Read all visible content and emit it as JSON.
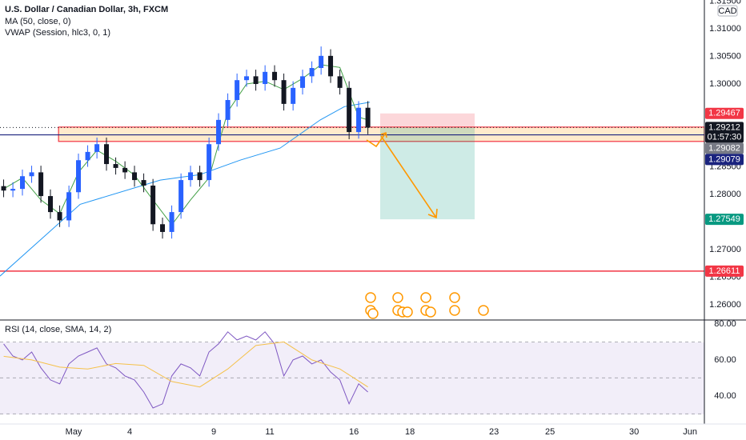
{
  "chart_data": [
    {
      "type": "candlestick",
      "title": "U.S. Dollar / Canadian Dollar, 3h, FXCM",
      "currency": "CAD",
      "xlim": [
        -2.63,
        22.51
      ],
      "xticks": [
        {
          "value": 0,
          "label": "May"
        },
        {
          "value": 2,
          "label": "4"
        },
        {
          "value": 5,
          "label": "9"
        },
        {
          "value": 7,
          "label": "11"
        },
        {
          "value": 10,
          "label": "16"
        },
        {
          "value": 12,
          "label": "18"
        },
        {
          "value": 15,
          "label": "23"
        },
        {
          "value": 17,
          "label": "25"
        },
        {
          "value": 20,
          "label": "30"
        },
        {
          "value": 22,
          "label": "Jun"
        }
      ],
      "ylim": [
        1.25725,
        1.31522
      ],
      "yticks": [
        {
          "value": 1.315,
          "label": "1.31500"
        },
        {
          "value": 1.31,
          "label": "1.31000"
        },
        {
          "value": 1.305,
          "label": "1.30500"
        },
        {
          "value": 1.3,
          "label": "1.30000"
        },
        {
          "value": 1.285,
          "label": "1.28500"
        },
        {
          "value": 1.28,
          "label": "1.28000"
        },
        {
          "value": 1.27,
          "label": "1.27000"
        },
        {
          "value": 1.265,
          "label": "1.26500"
        },
        {
          "value": 1.26,
          "label": "1.26000"
        }
      ],
      "up_color": "#2962ff",
      "down_color": "#131722",
      "x": [
        -2.5,
        -2.17,
        -1.83,
        -1.5,
        -1.17,
        -0.83,
        -0.5,
        -0.17,
        0.17,
        0.5,
        0.83,
        1.17,
        1.5,
        1.83,
        2.17,
        2.5,
        2.83,
        3.17,
        3.5,
        3.83,
        4.17,
        4.5,
        4.83,
        5.17,
        5.5,
        5.83,
        6.17,
        6.5,
        6.83,
        7.17,
        7.5,
        7.83,
        8.17,
        8.5,
        8.83,
        9.17,
        9.5,
        9.83,
        10.17,
        10.5
      ],
      "open": [
        1.2815,
        1.2807,
        1.281,
        1.2833,
        1.284,
        1.2797,
        1.2768,
        1.2753,
        1.2804,
        1.2862,
        1.2877,
        1.2891,
        1.2855,
        1.2848,
        1.284,
        1.2826,
        1.2816,
        1.2746,
        1.2732,
        1.2768,
        1.2826,
        1.284,
        1.2826,
        1.2891,
        1.2935,
        1.2971,
        1.3007,
        1.3014,
        1.3,
        1.3022,
        1.3007,
        1.2964,
        1.2993,
        1.3014,
        1.3029,
        1.3051,
        1.3014,
        1.2993,
        1.2913,
        1.2957
      ],
      "high": [
        1.2827,
        1.2822,
        1.2845,
        1.2852,
        1.2852,
        1.2809,
        1.278,
        1.2816,
        1.2874,
        1.2889,
        1.2903,
        1.2903,
        1.2867,
        1.286,
        1.2852,
        1.2838,
        1.2828,
        1.2758,
        1.278,
        1.2838,
        1.2852,
        1.2852,
        1.2903,
        1.2947,
        1.2983,
        1.3019,
        1.3026,
        1.3026,
        1.3034,
        1.3034,
        1.3019,
        1.3005,
        1.3026,
        1.3041,
        1.3068,
        1.3063,
        1.3026,
        1.3005,
        1.2969,
        1.2969
      ],
      "low": [
        1.2795,
        1.2795,
        1.2798,
        1.2821,
        1.2785,
        1.2756,
        1.2741,
        1.2741,
        1.2792,
        1.285,
        1.2865,
        1.2843,
        1.2836,
        1.2828,
        1.2814,
        1.2804,
        1.2734,
        1.272,
        1.272,
        1.2756,
        1.2814,
        1.2814,
        1.2814,
        1.2879,
        1.2923,
        1.2959,
        1.2995,
        1.2988,
        1.2988,
        1.2995,
        1.2952,
        1.2952,
        1.2981,
        1.3002,
        1.3017,
        1.3002,
        1.2981,
        1.29,
        1.2901,
        1.2909
      ],
      "close": [
        1.2807,
        1.281,
        1.2833,
        1.284,
        1.2797,
        1.2768,
        1.2753,
        1.2804,
        1.2862,
        1.2877,
        1.2891,
        1.2855,
        1.2848,
        1.284,
        1.2826,
        1.2816,
        1.2746,
        1.2732,
        1.2768,
        1.2826,
        1.284,
        1.2826,
        1.2891,
        1.2935,
        1.2971,
        1.3007,
        1.3014,
        1.3,
        1.3022,
        1.3007,
        1.2964,
        1.2993,
        1.3014,
        1.3029,
        1.3051,
        1.3014,
        1.2993,
        1.2913,
        1.2957,
        1.2921
      ],
      "series": [
        {
          "name": "MA (50, close, 0)",
          "color": "#2196f3",
          "x": [
            -2.63,
            0.23,
            3.09,
            4.51,
            5.94,
            7.37,
            8.8,
            9.66,
            10.57
          ],
          "values": [
            1.2652,
            1.2782,
            1.2826,
            1.2836,
            1.2862,
            1.2884,
            1.2935,
            1.2959,
            1.2967
          ]
        },
        {
          "name": "VWAP (Session, hlc3, 0, 1)",
          "color": "#43a047",
          "x": [
            -2.5,
            -1.83,
            -1.17,
            -0.5,
            0.17,
            0.83,
            1.5,
            2.17,
            2.83,
            3.5,
            4.17,
            4.83,
            5.5,
            6.17,
            6.83,
            7.5,
            8.17,
            8.83,
            9.5,
            10.17,
            10.5
          ],
          "values": [
            1.281,
            1.283,
            1.279,
            1.2765,
            1.284,
            1.288,
            1.286,
            1.2835,
            1.279,
            1.2745,
            1.279,
            1.283,
            1.295,
            1.3,
            1.3005,
            1.299,
            1.301,
            1.3035,
            1.303,
            1.294,
            1.2935
          ]
        }
      ],
      "zone": {
        "top": 1.2922,
        "bottom": 1.2896,
        "x_start": -0.54
      },
      "price_labels": [
        {
          "value": 1.29467,
          "label": "1.29467",
          "color": "#f23645"
        },
        {
          "value": 1.29212,
          "label": "1.29212",
          "color": "#131722",
          "countdown": "01:57:30"
        },
        {
          "value": 1.29082,
          "label": "1.29082",
          "color": "#787b86"
        },
        {
          "value": 1.29079,
          "label": "1.29079",
          "color": "#1a237e"
        },
        {
          "value": 1.27549,
          "label": "1.27549",
          "color": "#089981"
        },
        {
          "value": 1.26611,
          "label": "1.26611",
          "color": "#f23645"
        }
      ]
    },
    {
      "type": "line",
      "title": "RSI (14, close, SMA, 14, 2)",
      "ylim": [
        24.4,
        82.2
      ],
      "yticks": [
        {
          "value": 40,
          "label": "40.00"
        },
        {
          "value": 60,
          "label": "60.00"
        },
        {
          "value": 80,
          "label": "80.00"
        }
      ],
      "levels": [
        70,
        50,
        30
      ],
      "series": [
        {
          "name": "RSI",
          "color": "#7e57c2",
          "x": [
            -2.5,
            -2.17,
            -1.83,
            -1.5,
            -1.17,
            -0.83,
            -0.5,
            -0.17,
            0.17,
            0.5,
            0.83,
            1.17,
            1.5,
            1.83,
            2.17,
            2.5,
            2.83,
            3.17,
            3.5,
            3.83,
            4.17,
            4.5,
            4.83,
            5.17,
            5.5,
            5.83,
            6.17,
            6.5,
            6.83,
            7.17,
            7.5,
            7.83,
            8.17,
            8.5,
            8.83,
            9.17,
            9.5,
            9.83,
            10.17,
            10.5
          ],
          "values": [
            68.9,
            62.2,
            60,
            64.4,
            55.6,
            48.9,
            46.7,
            57.8,
            62.2,
            64.4,
            66.7,
            57.8,
            55.6,
            51.1,
            48.9,
            42.2,
            33.3,
            35.6,
            51.1,
            57.8,
            55.6,
            51.1,
            64.4,
            68.9,
            75.6,
            71.1,
            73.3,
            71.1,
            75.6,
            68.9,
            51.1,
            60,
            62.2,
            57.8,
            60,
            53.3,
            48.9,
            35.6,
            46.7,
            42.2
          ]
        },
        {
          "name": "SMA",
          "color": "#f5c14a",
          "x": [
            -2.5,
            -1.5,
            -0.5,
            0.5,
            1.5,
            2.5,
            3.5,
            4.5,
            5.5,
            6.5,
            7.5,
            8.5,
            9.5,
            10.5
          ],
          "values": [
            62,
            60,
            56,
            55,
            58,
            57,
            48,
            45,
            55,
            68,
            70,
            60,
            55,
            45
          ]
        }
      ]
    }
  ]
}
